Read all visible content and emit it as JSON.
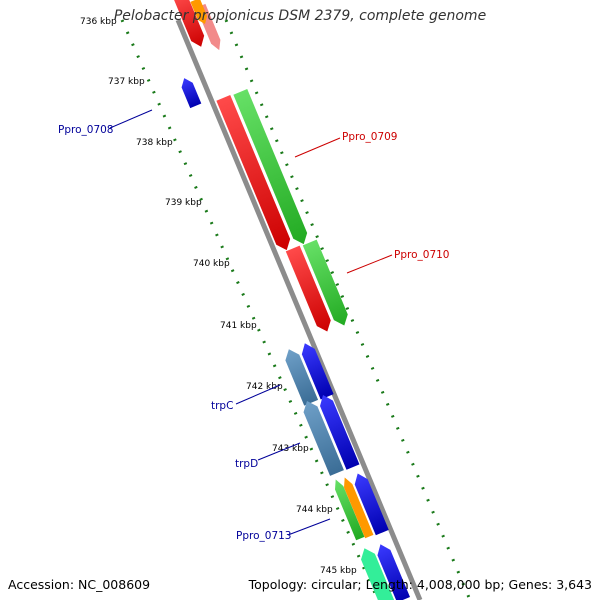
{
  "title": "Pelobacter propionicus DSM 2379, complete genome",
  "footer": {
    "accession": "Accession: NC_008609",
    "info": "Topology: circular; Length: 4,008,000 bp; Genes: 3,643"
  },
  "colors": {
    "backbone": "#8c8c8c",
    "tick": "#1a7a1a",
    "forward_label": "#cc0000",
    "reverse_label": "#000099"
  },
  "kbp_ticks": [
    {
      "label": "736 kbp"
    },
    {
      "label": "737 kbp"
    },
    {
      "label": "738 kbp"
    },
    {
      "label": "739 kbp"
    },
    {
      "label": "740 kbp"
    },
    {
      "label": "741 kbp"
    },
    {
      "label": "742 kbp"
    },
    {
      "label": "743 kbp"
    },
    {
      "label": "744 kbp"
    },
    {
      "label": "745 kbp"
    }
  ],
  "gene_labels": [
    {
      "text": "Ppro_0708",
      "strand": "reverse"
    },
    {
      "text": "Ppro_0709",
      "strand": "forward"
    },
    {
      "text": "Ppro_0710",
      "strand": "forward"
    },
    {
      "text": "trpC",
      "strand": "reverse"
    },
    {
      "text": "trpD",
      "strand": "reverse"
    },
    {
      "text": "Ppro_0713",
      "strand": "reverse"
    }
  ]
}
